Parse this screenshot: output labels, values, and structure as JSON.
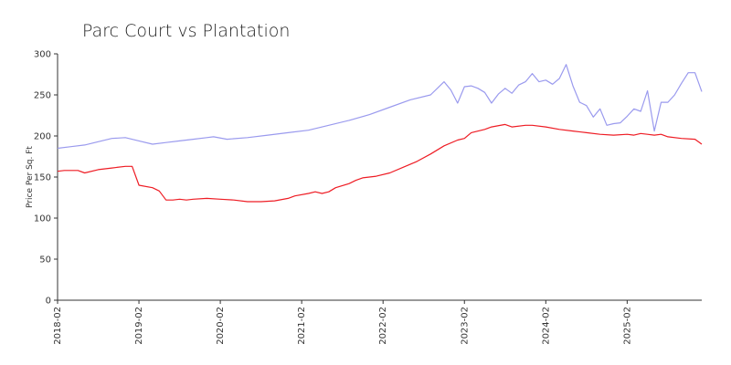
{
  "chart_data": {
    "type": "line",
    "title": "Parc Court vs Plantation",
    "xlabel": "",
    "ylabel": "Price Per Sq. Ft",
    "ylim": [
      0,
      300
    ],
    "yticks": [
      0,
      50,
      100,
      150,
      200,
      250,
      300
    ],
    "xtick_labels": [
      "2018-02",
      "2019-02",
      "2020-02",
      "2021-02",
      "2022-02",
      "2023-02",
      "2024-02",
      "2025-02"
    ],
    "grid": false,
    "legend": "none",
    "series": [
      {
        "color": "#9a9aee",
        "points": [
          [
            "2018-02",
            185
          ],
          [
            "2018-04",
            187
          ],
          [
            "2018-06",
            189
          ],
          [
            "2018-08",
            193
          ],
          [
            "2018-10",
            197
          ],
          [
            "2018-12",
            198
          ],
          [
            "2019-02",
            194
          ],
          [
            "2019-04",
            190
          ],
          [
            "2019-06",
            192
          ],
          [
            "2019-08",
            194
          ],
          [
            "2019-10",
            196
          ],
          [
            "2019-12",
            198
          ],
          [
            "2020-01",
            199
          ],
          [
            "2020-03",
            196
          ],
          [
            "2020-06",
            198
          ],
          [
            "2020-09",
            201
          ],
          [
            "2020-12",
            204
          ],
          [
            "2021-03",
            207
          ],
          [
            "2021-06",
            213
          ],
          [
            "2021-09",
            219
          ],
          [
            "2021-12",
            226
          ],
          [
            "2022-03",
            235
          ],
          [
            "2022-06",
            244
          ],
          [
            "2022-09",
            250
          ],
          [
            "2022-11",
            266
          ],
          [
            "2022-12",
            256
          ],
          [
            "2023-01",
            240
          ],
          [
            "2023-02",
            260
          ],
          [
            "2023-03",
            261
          ],
          [
            "2023-04",
            258
          ],
          [
            "2023-05",
            253
          ],
          [
            "2023-06",
            240
          ],
          [
            "2023-07",
            251
          ],
          [
            "2023-08",
            258
          ],
          [
            "2023-09",
            252
          ],
          [
            "2023-10",
            262
          ],
          [
            "2023-11",
            266
          ],
          [
            "2023-12",
            276
          ],
          [
            "2024-01",
            266
          ],
          [
            "2024-02",
            268
          ],
          [
            "2024-03",
            263
          ],
          [
            "2024-04",
            270
          ],
          [
            "2024-05",
            287
          ],
          [
            "2024-06",
            261
          ],
          [
            "2024-07",
            241
          ],
          [
            "2024-08",
            237
          ],
          [
            "2024-09",
            223
          ],
          [
            "2024-10",
            233
          ],
          [
            "2024-11",
            213
          ],
          [
            "2024-12",
            215
          ],
          [
            "2025-01",
            216
          ],
          [
            "2025-02",
            224
          ],
          [
            "2025-03",
            233
          ],
          [
            "2025-04",
            230
          ],
          [
            "2025-05",
            255
          ],
          [
            "2025-06",
            206
          ],
          [
            "2025-07",
            241
          ],
          [
            "2025-08",
            241
          ],
          [
            "2025-09",
            250
          ],
          [
            "2025-10",
            264
          ],
          [
            "2025-11",
            277
          ],
          [
            "2025-12",
            277
          ],
          [
            "2026-01",
            254
          ]
        ]
      },
      {
        "color": "#ee1c24",
        "points": [
          [
            "2018-02",
            157
          ],
          [
            "2018-03",
            158
          ],
          [
            "2018-05",
            158
          ],
          [
            "2018-06",
            155
          ],
          [
            "2018-08",
            159
          ],
          [
            "2018-10",
            161
          ],
          [
            "2018-12",
            163
          ],
          [
            "2019-01",
            163
          ],
          [
            "2019-02",
            140
          ],
          [
            "2019-04",
            137
          ],
          [
            "2019-05",
            133
          ],
          [
            "2019-06",
            122
          ],
          [
            "2019-07",
            122
          ],
          [
            "2019-08",
            123
          ],
          [
            "2019-09",
            122
          ],
          [
            "2019-10",
            123
          ],
          [
            "2019-12",
            124
          ],
          [
            "2020-02",
            123
          ],
          [
            "2020-04",
            122
          ],
          [
            "2020-06",
            120
          ],
          [
            "2020-08",
            120
          ],
          [
            "2020-10",
            121
          ],
          [
            "2020-12",
            124
          ],
          [
            "2021-01",
            127
          ],
          [
            "2021-03",
            130
          ],
          [
            "2021-04",
            132
          ],
          [
            "2021-05",
            130
          ],
          [
            "2021-06",
            132
          ],
          [
            "2021-07",
            137
          ],
          [
            "2021-09",
            142
          ],
          [
            "2021-10",
            146
          ],
          [
            "2021-11",
            149
          ],
          [
            "2021-12",
            150
          ],
          [
            "2022-01",
            151
          ],
          [
            "2022-03",
            155
          ],
          [
            "2022-05",
            162
          ],
          [
            "2022-07",
            169
          ],
          [
            "2022-09",
            178
          ],
          [
            "2022-11",
            188
          ],
          [
            "2023-01",
            195
          ],
          [
            "2023-02",
            197
          ],
          [
            "2023-03",
            204
          ],
          [
            "2023-05",
            208
          ],
          [
            "2023-06",
            211
          ],
          [
            "2023-08",
            214
          ],
          [
            "2023-09",
            211
          ],
          [
            "2023-11",
            213
          ],
          [
            "2023-12",
            213
          ],
          [
            "2024-02",
            211
          ],
          [
            "2024-04",
            208
          ],
          [
            "2024-06",
            206
          ],
          [
            "2024-08",
            204
          ],
          [
            "2024-10",
            202
          ],
          [
            "2024-12",
            201
          ],
          [
            "2025-02",
            202
          ],
          [
            "2025-03",
            201
          ],
          [
            "2025-04",
            203
          ],
          [
            "2025-05",
            202
          ],
          [
            "2025-06",
            201
          ],
          [
            "2025-07",
            202
          ],
          [
            "2025-08",
            199
          ],
          [
            "2025-10",
            197
          ],
          [
            "2025-12",
            196
          ],
          [
            "2026-01",
            190
          ]
        ]
      }
    ]
  }
}
